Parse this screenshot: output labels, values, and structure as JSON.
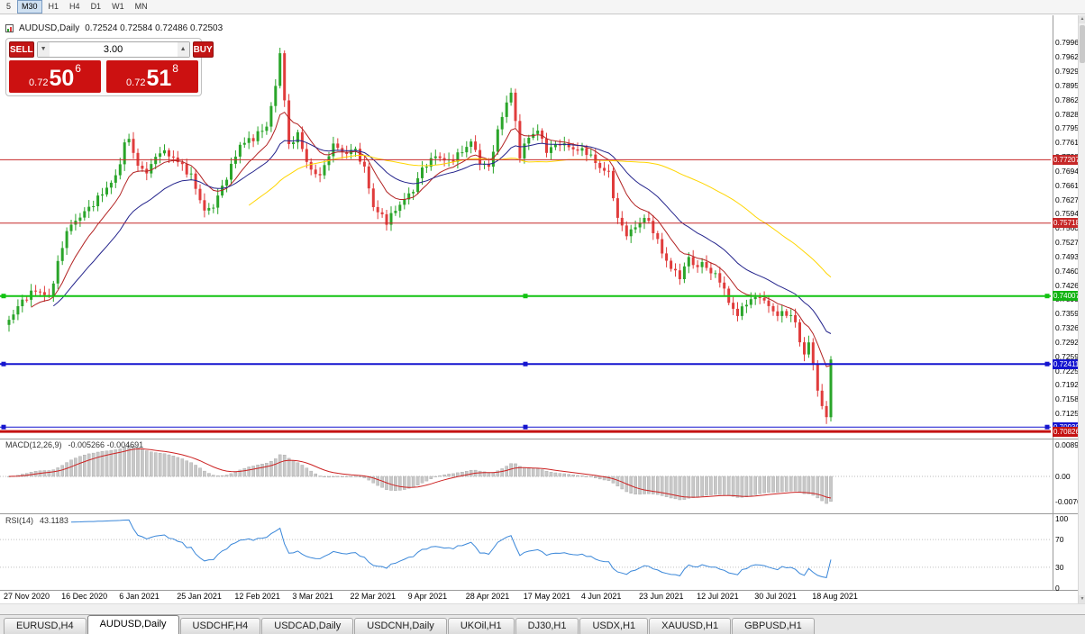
{
  "icons": {
    "volume_down": "▼",
    "volume_up": "▲",
    "scroll_up": "▲",
    "scroll_down": "▼"
  },
  "toolbar": {
    "timeframes": [
      {
        "label": "5",
        "active": false
      },
      {
        "label": "M30",
        "active": true
      },
      {
        "label": "H1",
        "active": false
      },
      {
        "label": "H4",
        "active": false
      },
      {
        "label": "D1",
        "active": false
      },
      {
        "label": "W1",
        "active": false
      },
      {
        "label": "MN",
        "active": false
      }
    ]
  },
  "chart": {
    "symbol_period": "AUDUSD,Daily",
    "ohlc": "0.72524 0.72584 0.72486 0.72503"
  },
  "trade_panel": {
    "sell_label": "SELL",
    "buy_label": "BUY",
    "volume": "3.00",
    "sell_price": {
      "prefix": "0.72",
      "big": "50",
      "sup": "6"
    },
    "buy_price": {
      "prefix": "0.72",
      "big": "51",
      "sup": "8"
    }
  },
  "macd": {
    "name": "MACD(12,26,9)",
    "values": "-0.005266 -0.004691",
    "axis": [
      {
        "v": 0.0089,
        "label": "0.00890"
      },
      {
        "v": 0.0,
        "label": "0.00"
      },
      {
        "v": -0.00701,
        "label": "-0.00701"
      }
    ]
  },
  "rsi": {
    "name": "RSI(14)",
    "value": "43.1183",
    "axis": [
      {
        "v": 100,
        "label": "100"
      },
      {
        "v": 70,
        "label": "70"
      },
      {
        "v": 30,
        "label": "30"
      },
      {
        "v": 0,
        "label": "0"
      }
    ],
    "levels": [
      70,
      30
    ]
  },
  "tabs": [
    {
      "label": "EURUSD,H4",
      "active": false
    },
    {
      "label": "AUDUSD,Daily",
      "active": true
    },
    {
      "label": "USDCHF,H4",
      "active": false
    },
    {
      "label": "USDCAD,Daily",
      "active": false
    },
    {
      "label": "USDCNH,Daily",
      "active": false
    },
    {
      "label": "UKOil,H1",
      "active": false
    },
    {
      "label": "DJ30,H1",
      "active": false
    },
    {
      "label": "USDX,H1",
      "active": false
    },
    {
      "label": "XAUUSD,H1",
      "active": false
    },
    {
      "label": "GBPUSD,H1",
      "active": false
    }
  ],
  "chart_data": {
    "type": "candlestick",
    "symbol": "AUDUSD",
    "timeframe": "Daily",
    "n_candles": 186,
    "price_path": [
      [
        0,
        0.7345
      ],
      [
        3,
        0.739
      ],
      [
        6,
        0.7415
      ],
      [
        9,
        0.7398
      ],
      [
        13,
        0.7555
      ],
      [
        16,
        0.7588
      ],
      [
        19,
        0.7618
      ],
      [
        22,
        0.7655
      ],
      [
        24,
        0.768
      ],
      [
        26,
        0.7755
      ],
      [
        27,
        0.7772
      ],
      [
        29,
        0.7705
      ],
      [
        31,
        0.7692
      ],
      [
        34,
        0.7742
      ],
      [
        37,
        0.7726
      ],
      [
        39,
        0.7706
      ],
      [
        41,
        0.7682
      ],
      [
        44,
        0.76
      ],
      [
        46,
        0.7612
      ],
      [
        49,
        0.768
      ],
      [
        52,
        0.7756
      ],
      [
        55,
        0.7772
      ],
      [
        58,
        0.78
      ],
      [
        60,
        0.7892
      ],
      [
        61,
        0.7975
      ],
      [
        62,
        0.7858
      ],
      [
        63,
        0.7755
      ],
      [
        65,
        0.778
      ],
      [
        67,
        0.7716
      ],
      [
        69,
        0.7682
      ],
      [
        71,
        0.7702
      ],
      [
        73,
        0.776
      ],
      [
        75,
        0.7736
      ],
      [
        78,
        0.7744
      ],
      [
        80,
        0.77
      ],
      [
        82,
        0.761
      ],
      [
        85,
        0.7576
      ],
      [
        88,
        0.7616
      ],
      [
        91,
        0.765
      ],
      [
        93,
        0.77
      ],
      [
        96,
        0.773
      ],
      [
        99,
        0.7716
      ],
      [
        102,
        0.774
      ],
      [
        104,
        0.7764
      ],
      [
        106,
        0.7716
      ],
      [
        108,
        0.7702
      ],
      [
        110,
        0.7788
      ],
      [
        112,
        0.7856
      ],
      [
        113,
        0.788
      ],
      [
        115,
        0.7732
      ],
      [
        117,
        0.7774
      ],
      [
        119,
        0.779
      ],
      [
        121,
        0.7742
      ],
      [
        124,
        0.776
      ],
      [
        127,
        0.7746
      ],
      [
        130,
        0.774
      ],
      [
        133,
        0.7702
      ],
      [
        135,
        0.769
      ],
      [
        137,
        0.7582
      ],
      [
        139,
        0.7546
      ],
      [
        141,
        0.7562
      ],
      [
        143,
        0.7586
      ],
      [
        145,
        0.7556
      ],
      [
        147,
        0.7502
      ],
      [
        149,
        0.7466
      ],
      [
        151,
        0.7446
      ],
      [
        153,
        0.749
      ],
      [
        155,
        0.7466
      ],
      [
        156,
        0.748
      ],
      [
        158,
        0.7456
      ],
      [
        160,
        0.744
      ],
      [
        162,
        0.7386
      ],
      [
        164,
        0.7356
      ],
      [
        166,
        0.7386
      ],
      [
        168,
        0.7396
      ],
      [
        169,
        0.74
      ],
      [
        171,
        0.7376
      ],
      [
        173,
        0.7356
      ],
      [
        175,
        0.7362
      ],
      [
        177,
        0.734
      ],
      [
        178,
        0.7292
      ],
      [
        179,
        0.7266
      ],
      [
        180,
        0.7286
      ],
      [
        181,
        0.7246
      ],
      [
        182,
        0.7176
      ],
      [
        183,
        0.714
      ],
      [
        184,
        0.712
      ],
      [
        185,
        0.725
      ]
    ],
    "y_axis": {
      "labels": [
        "0.79960",
        "0.79625",
        "0.79290",
        "0.78955",
        "0.78620",
        "0.78285",
        "0.77950",
        "0.77615",
        "0.77280",
        "0.76945",
        "0.76610",
        "0.76275",
        "0.75940",
        "0.75605",
        "0.75270",
        "0.74935",
        "0.74600",
        "0.74265",
        "0.73930",
        "0.73595",
        "0.73260",
        "0.72925",
        "0.72590",
        "0.72255",
        "0.71920",
        "0.71585",
        "0.71250",
        "0.70915"
      ]
    },
    "x_labels": [
      {
        "i": 0,
        "label": "27 Nov 2020"
      },
      {
        "i": 13,
        "label": "16 Dec 2020"
      },
      {
        "i": 26,
        "label": "6 Jan 2021"
      },
      {
        "i": 39,
        "label": "25 Jan 2021"
      },
      {
        "i": 52,
        "label": "12 Feb 2021"
      },
      {
        "i": 65,
        "label": "3 Mar 2021"
      },
      {
        "i": 78,
        "label": "22 Mar 2021"
      },
      {
        "i": 91,
        "label": "9 Apr 2021"
      },
      {
        "i": 104,
        "label": "28 Apr 2021"
      },
      {
        "i": 117,
        "label": "17 May 2021"
      },
      {
        "i": 130,
        "label": "4 Jun 2021"
      },
      {
        "i": 143,
        "label": "23 Jun 2021"
      },
      {
        "i": 156,
        "label": "12 Jul 2021"
      },
      {
        "i": 169,
        "label": "30 Jul 2021"
      },
      {
        "i": 182,
        "label": "18 Aug 2021"
      }
    ],
    "lines": [
      {
        "price": 0.77207,
        "color": "#c62828",
        "width": 1,
        "tag": "0.77207",
        "tag_color": "#c62828",
        "handles": false
      },
      {
        "price": 0.75718,
        "color": "#c62828",
        "width": 1,
        "tag": "0.75718",
        "tag_color": "#c62828",
        "handles": false
      },
      {
        "price": 0.74007,
        "color": "#12c312",
        "width": 2,
        "tag": "0.74007",
        "tag_color": "#12b312",
        "handles": true
      },
      {
        "price": 0.72411,
        "color": "#1515cf",
        "width": 2,
        "tag": "0.72411",
        "tag_color": "#1515cf",
        "handles": true
      },
      {
        "price": 0.7093,
        "color": "#1515cf",
        "width": 1,
        "tag": "0.70930",
        "tag_color": "#1515cf",
        "handles": true
      },
      {
        "price": 0.70826,
        "color": "#c41212",
        "width": 3,
        "tag": "0.70826",
        "tag_color": "#c41212",
        "handles": false
      }
    ],
    "colors": {
      "up": "#2aa52a",
      "down": "#e03c3c",
      "ma_fast": "#b22222",
      "ma_mid": "#24248c",
      "ma_slow": "#ffd500",
      "macd_hist": "#c8c8c8",
      "macd_signal": "#cc2222",
      "rsi": "#3a87d9"
    }
  }
}
